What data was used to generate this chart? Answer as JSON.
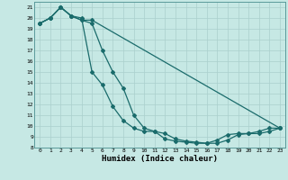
{
  "xlabel": "Humidex (Indice chaleur)",
  "background_color": "#c6e8e4",
  "grid_color": "#aacfcc",
  "line_color": "#1a6b6b",
  "xlim": [
    -0.5,
    23.5
  ],
  "ylim": [
    8,
    21.5
  ],
  "yticks": [
    8,
    9,
    10,
    11,
    12,
    13,
    14,
    15,
    16,
    17,
    18,
    19,
    20,
    21
  ],
  "xticks": [
    0,
    1,
    2,
    3,
    4,
    5,
    6,
    7,
    8,
    9,
    10,
    11,
    12,
    13,
    14,
    15,
    16,
    17,
    18,
    19,
    20,
    21,
    22,
    23
  ],
  "series": [
    {
      "x": [
        0,
        1,
        2,
        3,
        4,
        5,
        6,
        7,
        8,
        9,
        10,
        11,
        12,
        13,
        14,
        15,
        16,
        17,
        18,
        19,
        20,
        21,
        22,
        23
      ],
      "y": [
        19.5,
        20.0,
        21.0,
        20.2,
        20.0,
        15.0,
        13.8,
        11.8,
        10.5,
        9.8,
        9.5,
        9.5,
        8.8,
        8.6,
        8.5,
        8.4,
        8.4,
        8.7,
        9.2,
        9.3,
        9.3,
        9.5,
        9.8,
        9.8
      ]
    },
    {
      "x": [
        0,
        1,
        2,
        3,
        4,
        5,
        6,
        7,
        8,
        9,
        10,
        11,
        12,
        13,
        14,
        15,
        16,
        17,
        18,
        19,
        20,
        21,
        22,
        23
      ],
      "y": [
        19.5,
        20.0,
        21.0,
        20.2,
        19.8,
        19.5,
        17.0,
        15.0,
        13.5,
        11.0,
        9.8,
        9.5,
        9.3,
        8.8,
        8.6,
        8.5,
        8.4,
        8.4,
        8.7,
        9.2,
        9.3,
        9.3,
        9.5,
        9.8
      ]
    },
    {
      "x": [
        0,
        1,
        2,
        3,
        4,
        5,
        23
      ],
      "y": [
        19.5,
        20.0,
        21.0,
        20.2,
        19.8,
        19.8,
        9.8
      ]
    }
  ]
}
